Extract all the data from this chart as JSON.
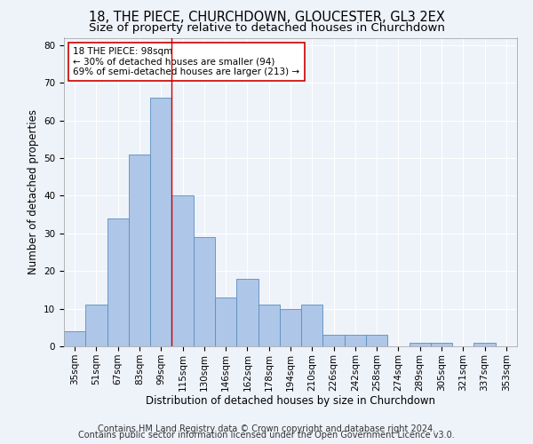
{
  "title1": "18, THE PIECE, CHURCHDOWN, GLOUCESTER, GL3 2EX",
  "title2": "Size of property relative to detached houses in Churchdown",
  "xlabel": "Distribution of detached houses by size in Churchdown",
  "ylabel": "Number of detached properties",
  "categories": [
    "35sqm",
    "51sqm",
    "67sqm",
    "83sqm",
    "99sqm",
    "115sqm",
    "130sqm",
    "146sqm",
    "162sqm",
    "178sqm",
    "194sqm",
    "210sqm",
    "226sqm",
    "242sqm",
    "258sqm",
    "274sqm",
    "289sqm",
    "305sqm",
    "321sqm",
    "337sqm",
    "353sqm"
  ],
  "values": [
    4,
    11,
    34,
    51,
    66,
    40,
    29,
    13,
    18,
    11,
    10,
    11,
    3,
    3,
    3,
    0,
    1,
    1,
    0,
    1,
    0
  ],
  "bar_color": "#aec6e8",
  "bar_edge_color": "#5a8fc0",
  "vline_x_index": 4.5,
  "vline_color": "#cc0000",
  "annotation_line1": "18 THE PIECE: 98sqm",
  "annotation_line2": "← 30% of detached houses are smaller (94)",
  "annotation_line3": "69% of semi-detached houses are larger (213) →",
  "annotation_box_color": "#ffffff",
  "annotation_box_edge": "#cc0000",
  "ylim": [
    0,
    82
  ],
  "yticks": [
    0,
    10,
    20,
    30,
    40,
    50,
    60,
    70,
    80
  ],
  "footer1": "Contains HM Land Registry data © Crown copyright and database right 2024.",
  "footer2": "Contains public sector information licensed under the Open Government Licence v3.0.",
  "background_color": "#eef2f9",
  "grid_color": "#ffffff",
  "title_fontsize": 10.5,
  "subtitle_fontsize": 9.5,
  "axis_label_fontsize": 8.5,
  "tick_fontsize": 7.5,
  "annotation_fontsize": 7.5,
  "footer_fontsize": 7.0
}
